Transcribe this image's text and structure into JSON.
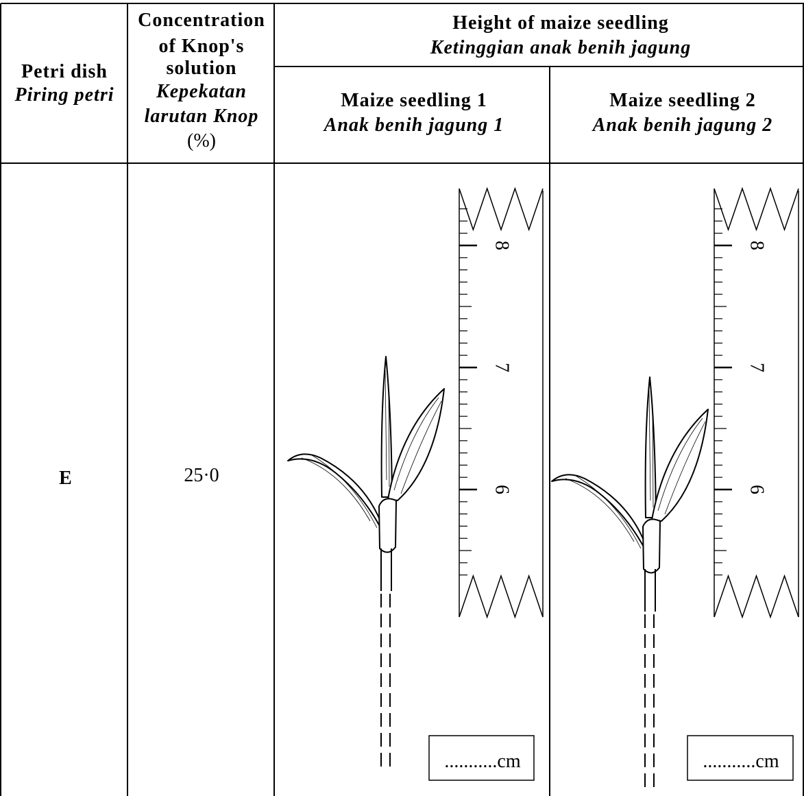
{
  "table": {
    "header": {
      "petri_dish": [
        "Petri dish",
        "Piring petri"
      ],
      "concentration": [
        "Concentration",
        "of Knop's",
        "solution",
        "Kepekatan",
        "larutan Knop",
        "(%)"
      ],
      "height": [
        "Height of maize seedling",
        "Ketinggian anak benih jagung"
      ],
      "seedlings": [
        [
          "Maize seedling 1",
          "Anak benih jagung 1"
        ],
        [
          "Maize seedling 2",
          "Anak benih jagung 2"
        ]
      ]
    },
    "rows": [
      [
        "E",
        "25·0"
      ]
    ]
  },
  "ruler_labels": [
    "8",
    "7",
    "6"
  ],
  "answer_blanks": [
    "...........cm",
    "...........cm"
  ]
}
